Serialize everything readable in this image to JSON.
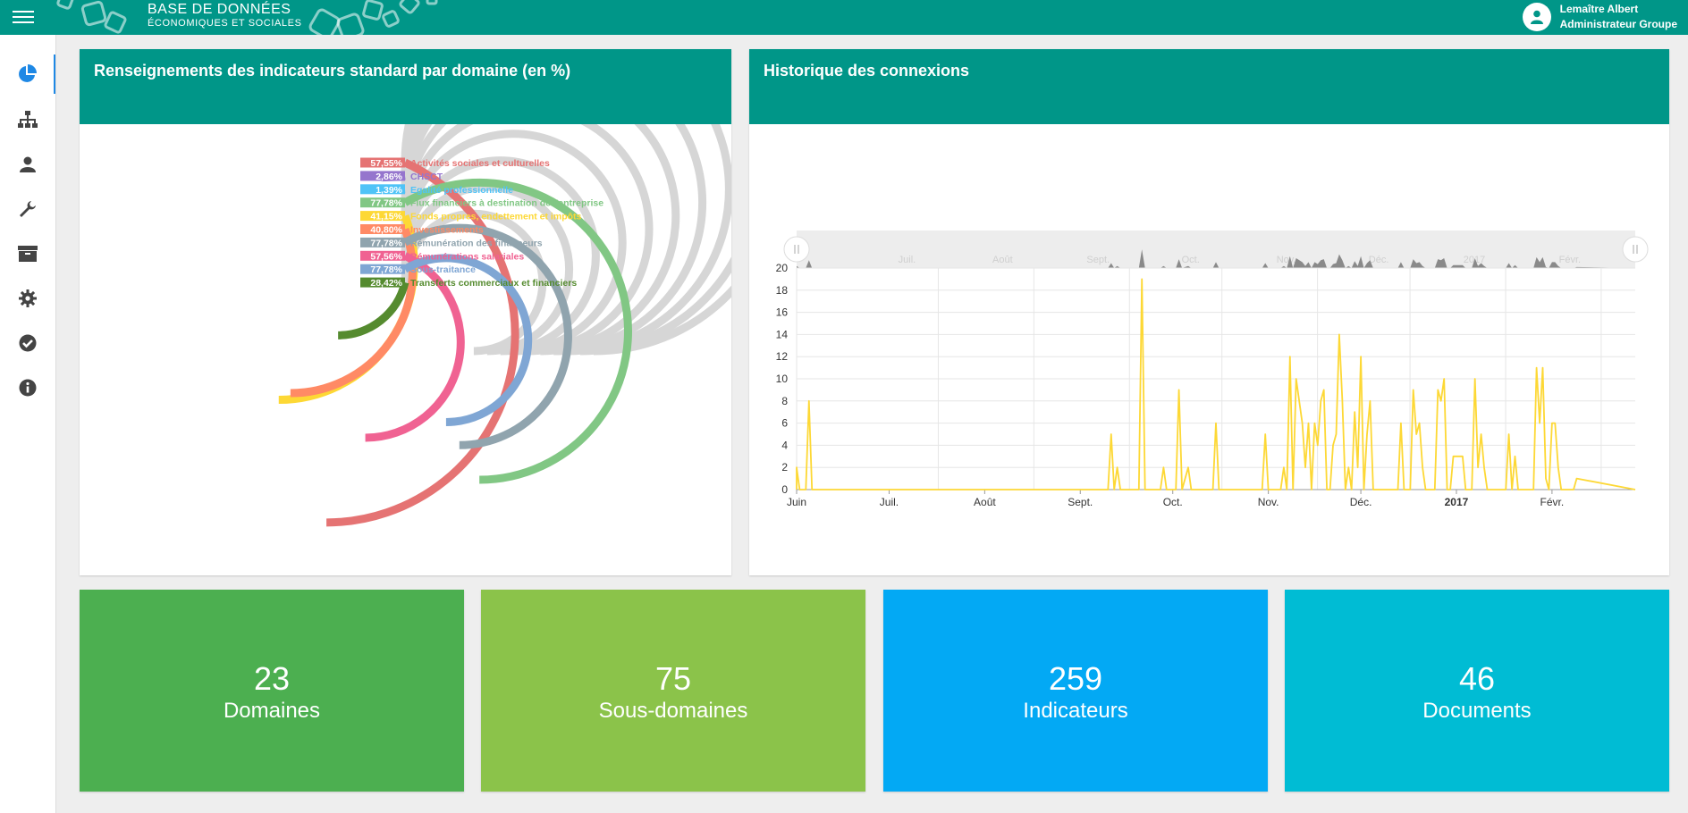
{
  "header": {
    "brand_title": "BASE DE DONNÉES",
    "brand_subtitle": "ÉCONOMIQUES ET SOCIALES",
    "user_name": "Lemaître Albert",
    "user_role": "Administrateur Groupe",
    "color": "#009688"
  },
  "sidebar": {
    "items": [
      {
        "icon": "pie-chart-icon",
        "active": true
      },
      {
        "icon": "sitemap-icon"
      },
      {
        "icon": "user-icon"
      },
      {
        "icon": "wrench-icon"
      },
      {
        "icon": "archive-icon"
      },
      {
        "icon": "gear-icon"
      },
      {
        "icon": "check-circle-icon"
      },
      {
        "icon": "info-circle-icon"
      }
    ]
  },
  "panel_radial": {
    "title": "Renseignements des indicateurs standard par domaine (en %)"
  },
  "panel_history": {
    "title": "Historique des connexions"
  },
  "chart_data": [
    {
      "type": "radial-bar",
      "title": "Renseignements des indicateurs standard par domaine (en %)",
      "series": [
        {
          "name": "Activités sociales et culturelles",
          "label": "57,55%",
          "value": 57.55,
          "color": "#e57373"
        },
        {
          "name": "CHSCT",
          "label": "2,86%",
          "value": 2.86,
          "color": "#9575cd"
        },
        {
          "name": "Egalité professionnelle",
          "label": "1,39%",
          "value": 1.39,
          "color": "#4fc3f7"
        },
        {
          "name": "Flux financiers à destination de l'entreprise",
          "label": "77,78%",
          "value": 77.78,
          "color": "#81c784"
        },
        {
          "name": "Fonds propres, endettement et impôts",
          "label": "41,15%",
          "value": 41.15,
          "color": "#fdd835"
        },
        {
          "name": "Investissements",
          "label": "40,80%",
          "value": 40.8,
          "color": "#ff8a65"
        },
        {
          "name": "Rémunération des financeurs",
          "label": "77,78%",
          "value": 77.78,
          "color": "#90a4ae"
        },
        {
          "name": "Rémunérations salariales",
          "label": "57,56%",
          "value": 57.56,
          "color": "#f06292"
        },
        {
          "name": "Sous-traitance",
          "label": "77,78%",
          "value": 77.78,
          "color": "#7fa6d4"
        },
        {
          "name": "Transferts commerciaux et financiers",
          "label": "28,42%",
          "value": 28.42,
          "color": "#558b2f"
        }
      ]
    },
    {
      "type": "line",
      "title": "Historique des connexions",
      "ylim": [
        0,
        20
      ],
      "yticks": [
        "0",
        "2",
        "4",
        "6",
        "8",
        "10",
        "12",
        "14",
        "16",
        "18",
        "20"
      ],
      "xticks": [
        "Juin",
        "Juil.",
        "Août",
        "Sept.",
        "Oct.",
        "Nov.",
        "Déc.",
        "2017",
        "Févr."
      ],
      "navigator_ticks": [
        "Juil.",
        "Août",
        "Sept.",
        "Oct.",
        "Nov.",
        "Déc.",
        "2017",
        "Févr."
      ],
      "line_color": "#fdd835",
      "x_start": "2016-06-01",
      "x_end": "2017-02-28",
      "points": [
        [
          "2016-06-01",
          2
        ],
        [
          "2016-06-02",
          0
        ],
        [
          "2016-06-04",
          0
        ],
        [
          "2016-06-05",
          8
        ],
        [
          "2016-06-06",
          0
        ],
        [
          "2016-09-10",
          0
        ],
        [
          "2016-09-11",
          5
        ],
        [
          "2016-09-12",
          0
        ],
        [
          "2016-09-13",
          2
        ],
        [
          "2016-09-14",
          0
        ],
        [
          "2016-09-20",
          0
        ],
        [
          "2016-09-21",
          19
        ],
        [
          "2016-09-22",
          0
        ],
        [
          "2016-09-27",
          0
        ],
        [
          "2016-09-28",
          2
        ],
        [
          "2016-09-29",
          0
        ],
        [
          "2016-10-02",
          0
        ],
        [
          "2016-10-03",
          9
        ],
        [
          "2016-10-04",
          0
        ],
        [
          "2016-10-06",
          2
        ],
        [
          "2016-10-07",
          0
        ],
        [
          "2016-10-14",
          0
        ],
        [
          "2016-10-15",
          6
        ],
        [
          "2016-10-16",
          0
        ],
        [
          "2016-10-30",
          0
        ],
        [
          "2016-10-31",
          5
        ],
        [
          "2016-11-01",
          0
        ],
        [
          "2016-11-05",
          0
        ],
        [
          "2016-11-06",
          2
        ],
        [
          "2016-11-07",
          0
        ],
        [
          "2016-11-08",
          12
        ],
        [
          "2016-11-09",
          0
        ],
        [
          "2016-11-10",
          10
        ],
        [
          "2016-11-12",
          6
        ],
        [
          "2016-11-13",
          2
        ],
        [
          "2016-11-14",
          6
        ],
        [
          "2016-11-15",
          0
        ],
        [
          "2016-11-16",
          6
        ],
        [
          "2016-11-17",
          4
        ],
        [
          "2016-11-18",
          8
        ],
        [
          "2016-11-19",
          9
        ],
        [
          "2016-11-20",
          0
        ],
        [
          "2016-11-21",
          0
        ],
        [
          "2016-11-22",
          4
        ],
        [
          "2016-11-23",
          5
        ],
        [
          "2016-11-24",
          14
        ],
        [
          "2016-11-25",
          8
        ],
        [
          "2016-11-26",
          0
        ],
        [
          "2016-11-27",
          2
        ],
        [
          "2016-11-28",
          0
        ],
        [
          "2016-11-29",
          7
        ],
        [
          "2016-11-30",
          2
        ],
        [
          "2016-12-01",
          12
        ],
        [
          "2016-12-02",
          0
        ],
        [
          "2016-12-03",
          5
        ],
        [
          "2016-12-04",
          8
        ],
        [
          "2016-12-05",
          0
        ],
        [
          "2016-12-13",
          0
        ],
        [
          "2016-12-14",
          6
        ],
        [
          "2016-12-15",
          0
        ],
        [
          "2016-12-17",
          0
        ],
        [
          "2016-12-18",
          9
        ],
        [
          "2016-12-19",
          5
        ],
        [
          "2016-12-20",
          6
        ],
        [
          "2016-12-21",
          2
        ],
        [
          "2016-12-22",
          0
        ],
        [
          "2016-12-25",
          0
        ],
        [
          "2016-12-26",
          9
        ],
        [
          "2016-12-27",
          8
        ],
        [
          "2016-12-28",
          10
        ],
        [
          "2016-12-29",
          0
        ],
        [
          "2016-12-30",
          0
        ],
        [
          "2016-12-31",
          3
        ],
        [
          "2017-01-01",
          3
        ],
        [
          "2017-01-02",
          3
        ],
        [
          "2017-01-03",
          3
        ],
        [
          "2017-01-04",
          0
        ],
        [
          "2017-01-06",
          0
        ],
        [
          "2017-01-07",
          10
        ],
        [
          "2017-01-08",
          2
        ],
        [
          "2017-01-09",
          5
        ],
        [
          "2017-01-10",
          2
        ],
        [
          "2017-01-11",
          0
        ],
        [
          "2017-01-17",
          0
        ],
        [
          "2017-01-18",
          5
        ],
        [
          "2017-01-19",
          0
        ],
        [
          "2017-01-20",
          3
        ],
        [
          "2017-01-21",
          0
        ],
        [
          "2017-01-26",
          0
        ],
        [
          "2017-01-27",
          11
        ],
        [
          "2017-01-28",
          6
        ],
        [
          "2017-01-29",
          11
        ],
        [
          "2017-01-30",
          1
        ],
        [
          "2017-01-31",
          0
        ],
        [
          "2017-02-01",
          6
        ],
        [
          "2017-02-02",
          6
        ],
        [
          "2017-02-03",
          2
        ],
        [
          "2017-02-04",
          0
        ],
        [
          "2017-02-08",
          0
        ],
        [
          "2017-02-09",
          1
        ]
      ]
    }
  ],
  "stats": [
    {
      "value": "23",
      "label": "Domaines",
      "color": "#4caf50"
    },
    {
      "value": "75",
      "label": "Sous-domaines",
      "color": "#8bc34a"
    },
    {
      "value": "259",
      "label": "Indicateurs",
      "color": "#03a9f4"
    },
    {
      "value": "46",
      "label": "Documents",
      "color": "#00bcd4"
    }
  ]
}
